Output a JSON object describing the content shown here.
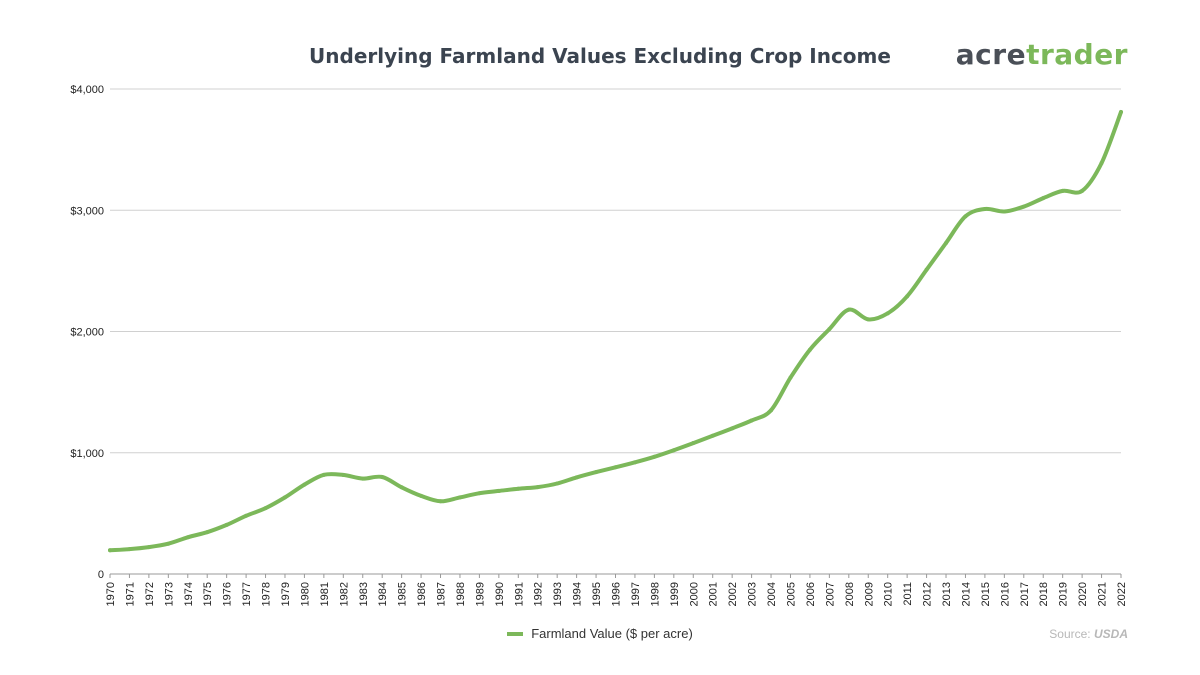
{
  "branding": {
    "logo_part_a": "acre",
    "logo_part_b": "trader"
  },
  "source": {
    "label": "Source: ",
    "value": "USDA"
  },
  "colors": {
    "series": "#7cb85a",
    "grid": "#d0d0d0",
    "title": "#3b4450"
  },
  "chart_data": {
    "type": "line",
    "title": "Underlying Farmland Values Excluding Crop Income",
    "xlabel": "",
    "ylabel": "",
    "ylim": [
      0,
      4000
    ],
    "yticks": [
      0,
      1000,
      2000,
      3000,
      4000
    ],
    "ytick_labels": [
      "0",
      "$1,000",
      "$2,000",
      "$3,000",
      "$4,000"
    ],
    "grid": true,
    "legend_position": "bottom",
    "x": [
      "1970",
      "1971",
      "1972",
      "1973",
      "1974",
      "1975",
      "1976",
      "1977",
      "1978",
      "1979",
      "1980",
      "1981",
      "1982",
      "1983",
      "1984",
      "1985",
      "1986",
      "1987",
      "1988",
      "1989",
      "1990",
      "1991",
      "1992",
      "1993",
      "1994",
      "1995",
      "1996",
      "1997",
      "1998",
      "1999",
      "2000",
      "2001",
      "2002",
      "2003",
      "2004",
      "2005",
      "2006",
      "2007",
      "2008",
      "2009",
      "2010",
      "2011",
      "2012",
      "2013",
      "2014",
      "2015",
      "2016",
      "2017",
      "2018",
      "2019",
      "2020",
      "2021",
      "2022"
    ],
    "series": [
      {
        "name": "Farmland Value ($ per acre)",
        "values": [
          196,
          205,
          222,
          250,
          303,
          345,
          405,
          480,
          543,
          632,
          737,
          818,
          817,
          787,
          800,
          715,
          644,
          600,
          632,
          666,
          685,
          703,
          717,
          746,
          797,
          840,
          880,
          921,
          967,
          1021,
          1080,
          1140,
          1201,
          1266,
          1350,
          1620,
          1850,
          2020,
          2180,
          2100,
          2150,
          2290,
          2510,
          2730,
          2950,
          3010,
          2990,
          3030,
          3100,
          3160,
          3160,
          3390,
          3810
        ]
      }
    ]
  }
}
